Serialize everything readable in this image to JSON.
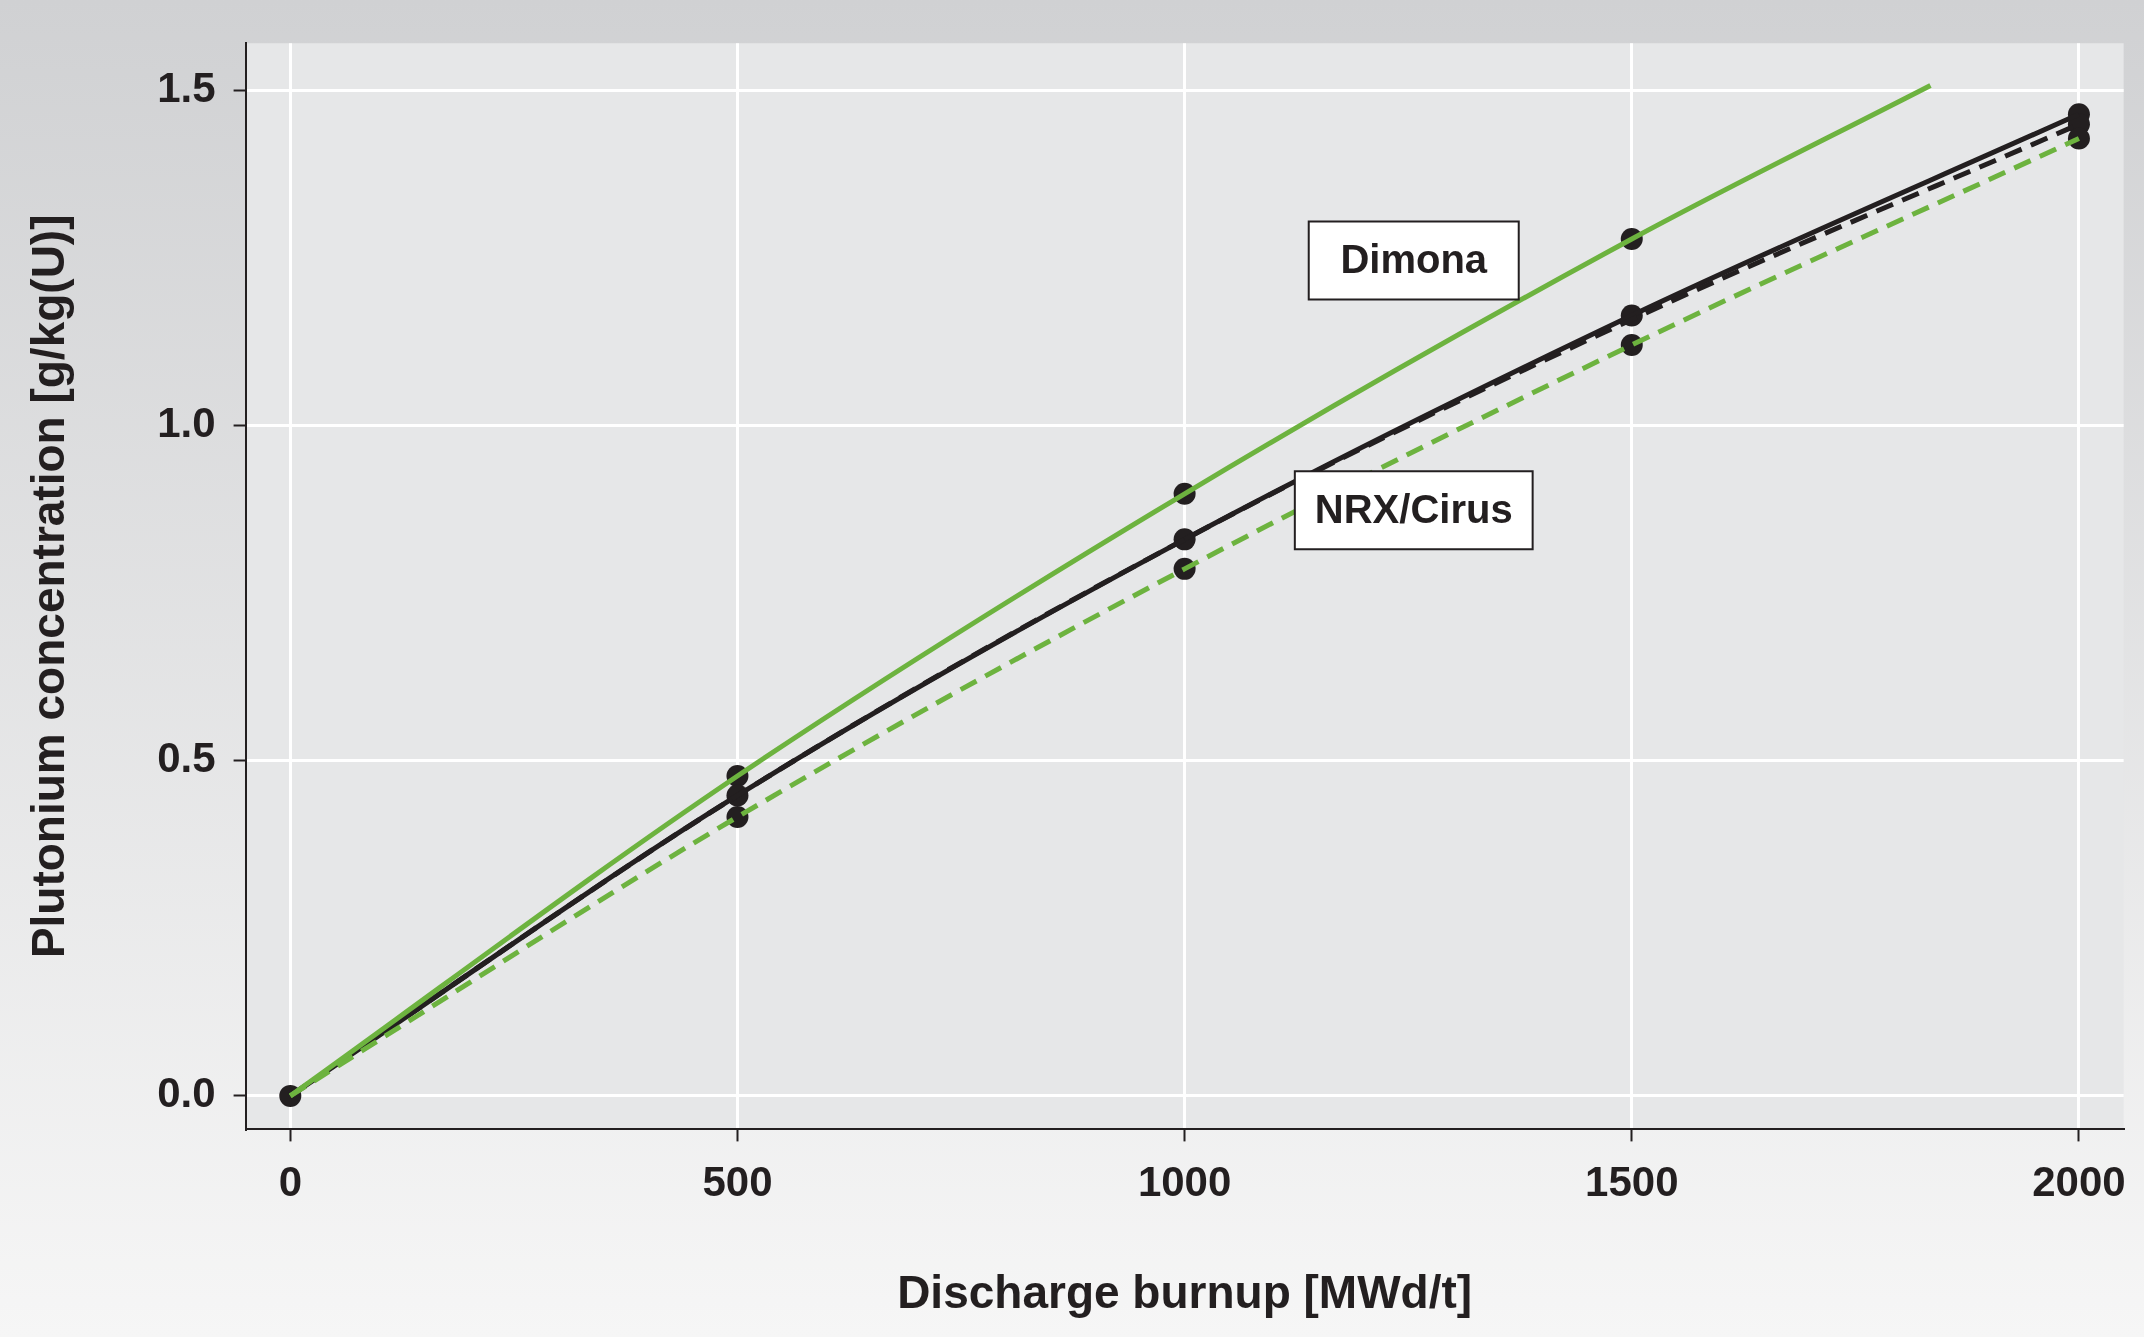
{
  "chart_data": {
    "type": "line",
    "xlabel": "Discharge burnup [MWd/t]",
    "ylabel": "Plutonium concentration [g/kg(U)]",
    "xlim": [
      -50,
      2050
    ],
    "xticks": [
      0,
      500,
      1000,
      1500,
      2000
    ],
    "ylim": [
      -0.05,
      1.57
    ],
    "yticks": [
      {
        "value": 0,
        "label": "0.0"
      },
      {
        "value": 0.5,
        "label": "0.5"
      },
      {
        "value": 1,
        "label": "1.0"
      },
      {
        "value": 1.5,
        "label": "1.5"
      }
    ],
    "grid": true,
    "legend": false,
    "series": [
      {
        "color": "#6db33f",
        "line_style": "solid",
        "marker": "none",
        "x": [
          0,
          500,
          1000,
          1500,
          1834
        ],
        "values": [
          0,
          0.477,
          0.898,
          1.278,
          1.507
        ]
      },
      {
        "color": "#6db33f",
        "line_style": "dashed",
        "marker": "none",
        "x": [
          0,
          500,
          1000,
          1500,
          2000
        ],
        "values": [
          0,
          0.416,
          0.786,
          1.12,
          1.428
        ]
      },
      {
        "color": "#231f20",
        "line_style": "dashed",
        "marker": "none",
        "x": [
          0,
          500,
          1000,
          1500,
          2000
        ],
        "values": [
          0,
          0.448,
          0.83,
          1.158,
          1.449
        ]
      },
      {
        "color": "#231f20",
        "line_style": "solid",
        "marker": "none",
        "x": [
          0,
          500,
          1000,
          1500,
          2000
        ],
        "values": [
          0,
          0.448,
          0.83,
          1.164,
          1.464
        ]
      },
      {
        "type": "scatter",
        "color": "#231f20",
        "marker": "circle",
        "x": [
          0,
          500,
          500,
          500,
          1000,
          1000,
          1000,
          1500,
          1500,
          1500,
          2000,
          2000,
          2000
        ],
        "values": [
          0,
          0.477,
          0.448,
          0.416,
          0.898,
          0.83,
          0.786,
          1.278,
          1.164,
          1.12,
          1.464,
          1.449,
          1.428
        ]
      }
    ],
    "annotations": [
      "Dimona",
      "NRX/Cirus"
    ]
  }
}
